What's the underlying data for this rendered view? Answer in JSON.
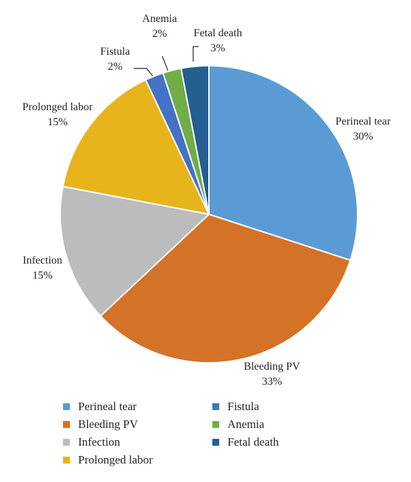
{
  "chart_data": {
    "type": "pie",
    "title": "",
    "slices": [
      {
        "label": "Perineal tear",
        "percent_label": "30%",
        "value": 30,
        "color": "#5b9bd5"
      },
      {
        "label": "Bleeding PV",
        "percent_label": "33%",
        "value": 33,
        "color": "#d47228"
      },
      {
        "label": "Infection",
        "percent_label": "15%",
        "value": 15,
        "color": "#bcbcbc"
      },
      {
        "label": "Prolonged labor",
        "percent_label": "15%",
        "value": 15,
        "color": "#e8b41c"
      },
      {
        "label": "Fistula",
        "percent_label": "2%",
        "value": 2,
        "color": "#4472c4"
      },
      {
        "label": "Anemia",
        "percent_label": "2%",
        "value": 2,
        "color": "#70ad47"
      },
      {
        "label": "Fetal death",
        "percent_label": "3%",
        "value": 3,
        "color": "#255e91"
      }
    ],
    "legend_position": "bottom"
  }
}
